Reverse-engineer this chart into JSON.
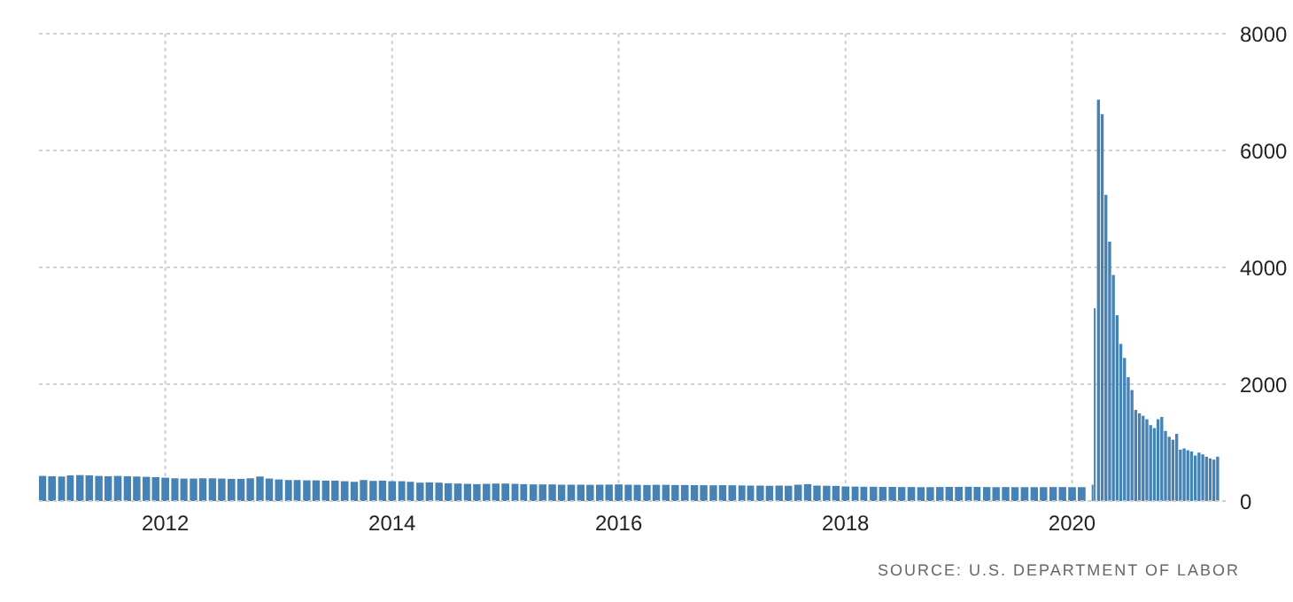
{
  "chart_data": {
    "type": "bar",
    "color": "#4682b4",
    "x": [
      "2010-12",
      "2011-01",
      "2011-02",
      "2011-03",
      "2011-04",
      "2011-05",
      "2011-06",
      "2011-07",
      "2011-08",
      "2011-09",
      "2011-10",
      "2011-11",
      "2011-12",
      "2012-01",
      "2012-02",
      "2012-03",
      "2012-04",
      "2012-05",
      "2012-06",
      "2012-07",
      "2012-08",
      "2012-09",
      "2012-10",
      "2012-11",
      "2012-12",
      "2013-01",
      "2013-02",
      "2013-03",
      "2013-04",
      "2013-05",
      "2013-06",
      "2013-07",
      "2013-08",
      "2013-09",
      "2013-10",
      "2013-11",
      "2013-12",
      "2014-01",
      "2014-02",
      "2014-03",
      "2014-04",
      "2014-05",
      "2014-06",
      "2014-07",
      "2014-08",
      "2014-09",
      "2014-10",
      "2014-11",
      "2014-12",
      "2015-01",
      "2015-02",
      "2015-03",
      "2015-04",
      "2015-05",
      "2015-06",
      "2015-07",
      "2015-08",
      "2015-09",
      "2015-10",
      "2015-11",
      "2015-12",
      "2016-01",
      "2016-02",
      "2016-03",
      "2016-04",
      "2016-05",
      "2016-06",
      "2016-07",
      "2016-08",
      "2016-09",
      "2016-10",
      "2016-11",
      "2016-12",
      "2017-01",
      "2017-02",
      "2017-03",
      "2017-04",
      "2017-05",
      "2017-06",
      "2017-07",
      "2017-08",
      "2017-09",
      "2017-10",
      "2017-11",
      "2017-12",
      "2018-01",
      "2018-02",
      "2018-03",
      "2018-04",
      "2018-05",
      "2018-06",
      "2018-07",
      "2018-08",
      "2018-09",
      "2018-10",
      "2018-11",
      "2018-12",
      "2019-01",
      "2019-02",
      "2019-03",
      "2019-04",
      "2019-05",
      "2019-06",
      "2019-07",
      "2019-08",
      "2019-09",
      "2019-10",
      "2019-11",
      "2019-12",
      "2020-01",
      "2020-02",
      "2020-03-07",
      "2020-03-14",
      "2020-03-26",
      "2020-04-07",
      "2020-04-19",
      "2020-05-01",
      "2020-05-13",
      "2020-05-25",
      "2020-06-06",
      "2020-06-18",
      "2020-06-30",
      "2020-07-12",
      "2020-07-24",
      "2020-08-05",
      "2020-08-17",
      "2020-08-29",
      "2020-09-10",
      "2020-09-22",
      "2020-10-04",
      "2020-10-16",
      "2020-10-28",
      "2020-11-09",
      "2020-11-21",
      "2020-12-03",
      "2020-12-15",
      "2020-12-27",
      "2021-01-08",
      "2021-01-20",
      "2021-02-01",
      "2021-02-13",
      "2021-02-25",
      "2021-03-09",
      "2021-03-21",
      "2021-04-02",
      "2021-04-14"
    ],
    "values": [
      430,
      425,
      420,
      440,
      445,
      440,
      430,
      425,
      430,
      425,
      420,
      415,
      410,
      400,
      390,
      385,
      385,
      390,
      390,
      385,
      380,
      380,
      390,
      420,
      385,
      370,
      360,
      360,
      355,
      355,
      350,
      350,
      340,
      330,
      360,
      345,
      350,
      340,
      340,
      330,
      315,
      320,
      315,
      305,
      300,
      295,
      290,
      295,
      300,
      300,
      295,
      290,
      285,
      285,
      285,
      280,
      280,
      280,
      278,
      280,
      282,
      285,
      280,
      278,
      275,
      278,
      278,
      275,
      275,
      272,
      272,
      270,
      272,
      270,
      268,
      265,
      265,
      262,
      265,
      262,
      280,
      290,
      265,
      262,
      260,
      250,
      248,
      245,
      245,
      242,
      242,
      240,
      240,
      238,
      238,
      240,
      242,
      242,
      245,
      242,
      240,
      238,
      240,
      238,
      238,
      238,
      238,
      240,
      240,
      238,
      238,
      280,
      3300,
      6870,
      6620,
      5240,
      4440,
      3870,
      3180,
      2690,
      2450,
      2120,
      1900,
      1560,
      1500,
      1460,
      1400,
      1300,
      1250,
      1400,
      1440,
      1200,
      1100,
      1050,
      1150,
      880,
      900,
      870,
      850,
      780,
      830,
      800,
      760,
      730,
      710,
      760
    ],
    "xlim": [
      "2010-11-20",
      "2021-05-10"
    ],
    "xticks": [
      "2012",
      "2014",
      "2016",
      "2018",
      "2020"
    ],
    "ylim": [
      0,
      8000
    ],
    "yticks": [
      0,
      2000,
      4000,
      6000,
      8000
    ],
    "grid": true,
    "annotations": [
      "SOURCE: U.S. DEPARTMENT OF LABOR"
    ]
  }
}
